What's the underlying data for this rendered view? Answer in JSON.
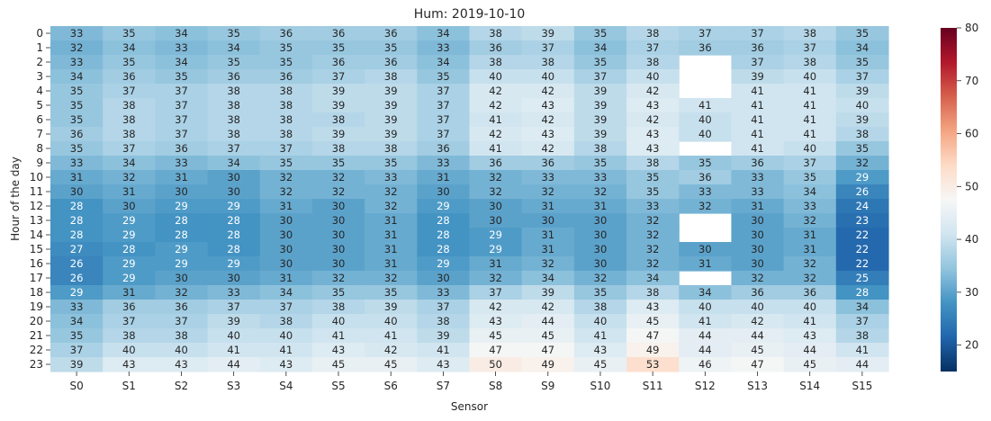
{
  "chart_data": {
    "type": "heatmap",
    "title": "Hum: 2019-10-10",
    "xlabel": "Sensor",
    "ylabel": "Hour of the day",
    "x_categories": [
      "S0",
      "S1",
      "S2",
      "S3",
      "S4",
      "S5",
      "S6",
      "S7",
      "S8",
      "S9",
      "S10",
      "S11",
      "S12",
      "S13",
      "S14",
      "S15"
    ],
    "y_categories": [
      "0",
      "1",
      "2",
      "3",
      "4",
      "5",
      "6",
      "7",
      "8",
      "9",
      "10",
      "11",
      "12",
      "13",
      "14",
      "15",
      "16",
      "17",
      "18",
      "19",
      "20",
      "21",
      "22",
      "23"
    ],
    "values": [
      [
        33,
        35,
        34,
        35,
        36,
        36,
        36,
        34,
        38,
        39,
        35,
        38,
        37,
        37,
        38,
        35
      ],
      [
        32,
        34,
        33,
        34,
        35,
        35,
        35,
        33,
        36,
        37,
        34,
        37,
        36,
        36,
        37,
        34
      ],
      [
        33,
        35,
        34,
        35,
        35,
        36,
        36,
        34,
        38,
        38,
        35,
        38,
        null,
        37,
        38,
        35
      ],
      [
        34,
        36,
        35,
        36,
        36,
        37,
        38,
        35,
        40,
        40,
        37,
        40,
        null,
        39,
        40,
        37
      ],
      [
        35,
        37,
        37,
        38,
        38,
        39,
        39,
        37,
        42,
        42,
        39,
        42,
        null,
        41,
        41,
        39
      ],
      [
        35,
        38,
        37,
        38,
        38,
        39,
        39,
        37,
        42,
        43,
        39,
        43,
        41,
        41,
        41,
        40
      ],
      [
        35,
        38,
        37,
        38,
        38,
        38,
        39,
        37,
        41,
        42,
        39,
        42,
        40,
        41,
        41,
        39
      ],
      [
        36,
        38,
        37,
        38,
        38,
        39,
        39,
        37,
        42,
        43,
        39,
        43,
        40,
        41,
        41,
        38
      ],
      [
        35,
        37,
        36,
        37,
        37,
        38,
        38,
        36,
        41,
        42,
        38,
        43,
        null,
        41,
        40,
        35
      ],
      [
        33,
        34,
        33,
        34,
        35,
        35,
        35,
        33,
        36,
        36,
        35,
        38,
        35,
        36,
        37,
        32
      ],
      [
        31,
        32,
        31,
        30,
        32,
        32,
        33,
        31,
        32,
        33,
        33,
        35,
        36,
        33,
        35,
        29
      ],
      [
        30,
        31,
        30,
        30,
        32,
        32,
        32,
        30,
        32,
        32,
        32,
        35,
        33,
        33,
        34,
        26
      ],
      [
        28,
        30,
        29,
        29,
        31,
        30,
        32,
        29,
        30,
        31,
        31,
        33,
        32,
        31,
        33,
        24
      ],
      [
        28,
        29,
        28,
        28,
        30,
        30,
        31,
        28,
        30,
        30,
        30,
        32,
        null,
        30,
        32,
        23
      ],
      [
        28,
        29,
        28,
        28,
        30,
        30,
        31,
        28,
        29,
        31,
        30,
        32,
        null,
        30,
        31,
        22
      ],
      [
        27,
        28,
        29,
        28,
        30,
        30,
        31,
        28,
        29,
        31,
        30,
        32,
        30,
        30,
        31,
        22
      ],
      [
        26,
        29,
        29,
        29,
        30,
        30,
        31,
        29,
        31,
        32,
        30,
        32,
        31,
        30,
        32,
        22
      ],
      [
        26,
        29,
        30,
        30,
        31,
        32,
        32,
        30,
        32,
        34,
        32,
        34,
        null,
        32,
        32,
        25
      ],
      [
        29,
        31,
        32,
        33,
        34,
        35,
        35,
        33,
        37,
        39,
        35,
        38,
        34,
        36,
        36,
        28
      ],
      [
        33,
        36,
        36,
        37,
        37,
        38,
        39,
        37,
        42,
        42,
        38,
        43,
        40,
        40,
        40,
        34
      ],
      [
        34,
        37,
        37,
        39,
        38,
        40,
        40,
        38,
        43,
        44,
        40,
        45,
        41,
        42,
        41,
        37
      ],
      [
        35,
        38,
        38,
        40,
        40,
        41,
        41,
        39,
        45,
        45,
        41,
        47,
        44,
        44,
        43,
        38
      ],
      [
        37,
        40,
        40,
        41,
        41,
        43,
        42,
        41,
        47,
        47,
        43,
        49,
        44,
        45,
        44,
        41
      ],
      [
        39,
        43,
        43,
        44,
        43,
        45,
        45,
        43,
        50,
        49,
        45,
        53,
        46,
        47,
        45,
        44
      ]
    ],
    "colormap": "RdBu_r",
    "vmin": 15,
    "vmax": 80,
    "colorbar_ticks": [
      20,
      30,
      40,
      50,
      60,
      70,
      80
    ],
    "annotate": true
  }
}
